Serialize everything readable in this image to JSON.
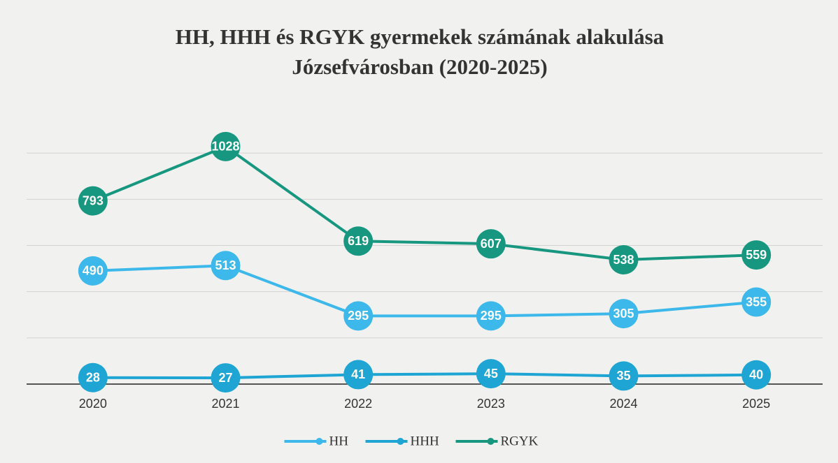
{
  "chart_data": {
    "type": "line",
    "title": "HH, HHH és RGYK gyermekek számának alakulása",
    "subtitle": "Józsefvárosban (2020-2025)",
    "categories": [
      "2020",
      "2021",
      "2022",
      "2023",
      "2024",
      "2025"
    ],
    "series": [
      {
        "name": "HH",
        "color": "#3db8ea",
        "values": [
          490,
          513,
          295,
          295,
          305,
          355
        ]
      },
      {
        "name": "HHH",
        "color": "#1ea5d3",
        "values": [
          28,
          27,
          41,
          45,
          35,
          40
        ]
      },
      {
        "name": "RGYK",
        "color": "#17977f",
        "values": [
          793,
          1028,
          619,
          607,
          538,
          559
        ]
      }
    ],
    "ylim": [
      0,
      1200
    ],
    "yticks": [
      0,
      200,
      400,
      600,
      800,
      1000
    ],
    "grid": true,
    "legend": "bottom"
  }
}
